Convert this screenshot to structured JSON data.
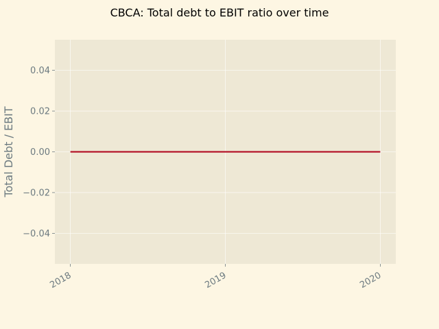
{
  "chart_data": {
    "type": "line",
    "title": "CBCA: Total debt to EBIT ratio over time",
    "xlabel": "",
    "ylabel": "Total Debt / EBIT",
    "x": [
      "2018",
      "2019",
      "2020"
    ],
    "x_tick_labels": [
      "2018",
      "2019",
      "2020"
    ],
    "y_tick_labels": [
      "0.04",
      "0.02",
      "0.00",
      "−0.02",
      "−0.04"
    ],
    "y_ticks": [
      0.04,
      0.02,
      0.0,
      -0.02,
      -0.04
    ],
    "ylim": [
      -0.055,
      0.055
    ],
    "xlim": [
      2017.9,
      2020.1
    ],
    "grid": true,
    "series": [
      {
        "x": [
          2018,
          2019,
          2020
        ],
        "values": [
          0,
          0,
          0
        ],
        "color": "#b5152b"
      }
    ],
    "colors": {
      "page_background": "#fdf6e3",
      "plot_background": "#eee8d5",
      "grid": "#ffffff",
      "text": "#6c7a80"
    }
  }
}
